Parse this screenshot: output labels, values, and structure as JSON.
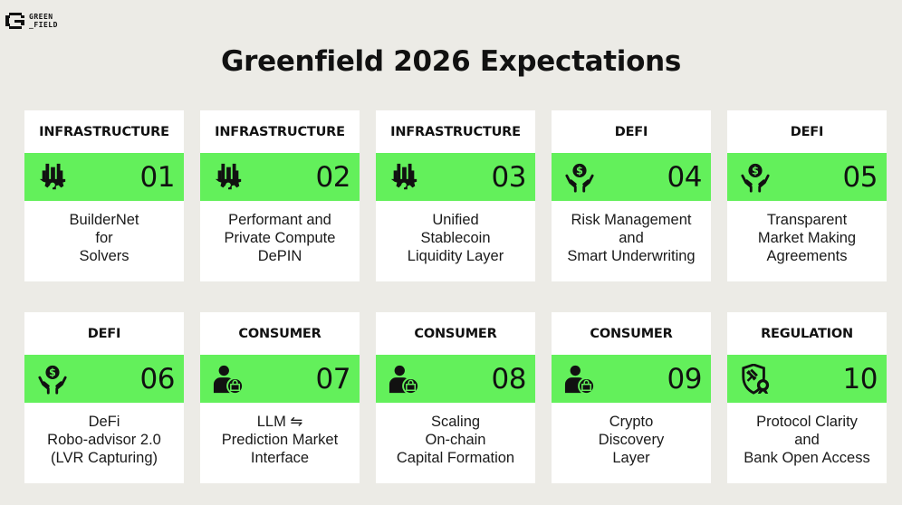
{
  "logo": {
    "line1": "GREEN",
    "line2": "_FIELD"
  },
  "title": "Greenfield 2026 Expectations",
  "accent_color": "#63f05b",
  "cards": [
    {
      "category": "INFRASTRUCTURE",
      "number": "01",
      "icon": "factory-gear-icon",
      "desc": [
        "BuilderNet",
        "for",
        "Solvers"
      ]
    },
    {
      "category": "INFRASTRUCTURE",
      "number": "02",
      "icon": "factory-gear-icon",
      "desc": [
        "Performant and",
        "Private Compute",
        "DePIN"
      ]
    },
    {
      "category": "INFRASTRUCTURE",
      "number": "03",
      "icon": "factory-gear-icon",
      "desc": [
        "Unified",
        "Stablecoin",
        "Liquidity Layer"
      ]
    },
    {
      "category": "DEFI",
      "number": "04",
      "icon": "dollar-hands-icon",
      "desc": [
        "Risk Management",
        "and",
        "Smart Underwriting"
      ]
    },
    {
      "category": "DEFI",
      "number": "05",
      "icon": "dollar-hands-icon",
      "desc": [
        "Transparent",
        "Market Making",
        "Agreements"
      ]
    },
    {
      "category": "DEFI",
      "number": "06",
      "icon": "dollar-hands-icon",
      "desc": [
        "DeFi",
        "Robo-advisor 2.0",
        "(LVR Capturing)"
      ]
    },
    {
      "category": "CONSUMER",
      "number": "07",
      "icon": "user-shopping-icon",
      "desc": [
        "LLM ⇋",
        "Prediction Market",
        "Interface"
      ]
    },
    {
      "category": "CONSUMER",
      "number": "08",
      "icon": "user-shopping-icon",
      "desc": [
        "Scaling",
        "On-chain",
        "Capital Formation"
      ]
    },
    {
      "category": "CONSUMER",
      "number": "09",
      "icon": "user-shopping-icon",
      "desc": [
        "Crypto",
        "Discovery",
        "Layer"
      ]
    },
    {
      "category": "REGULATION",
      "number": "10",
      "icon": "shield-gavel-icon",
      "desc": [
        "Protocol Clarity",
        "and",
        "Bank Open Access"
      ]
    }
  ]
}
